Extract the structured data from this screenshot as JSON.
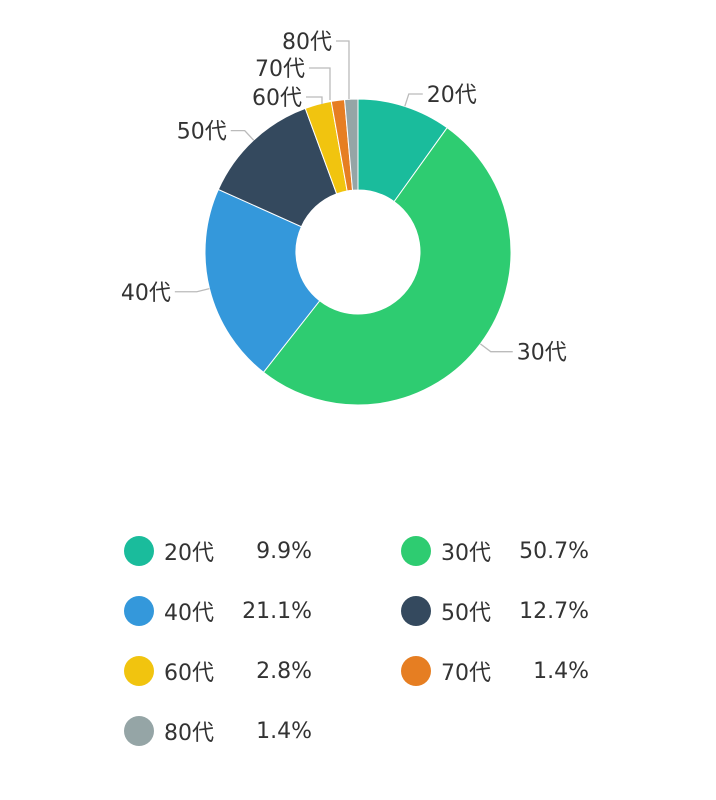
{
  "chart_data": {
    "type": "pie",
    "donut": true,
    "legend_position": "bottom",
    "slices": [
      {
        "label": "20代",
        "value": 9.9,
        "value_text": "9.9%",
        "color": "#1abc9c"
      },
      {
        "label": "30代",
        "value": 50.7,
        "value_text": "50.7%",
        "color": "#2ecc71"
      },
      {
        "label": "40代",
        "value": 21.1,
        "value_text": "21.1%",
        "color": "#3498db"
      },
      {
        "label": "50代",
        "value": 12.7,
        "value_text": "12.7%",
        "color": "#34495e"
      },
      {
        "label": "60代",
        "value": 2.8,
        "value_text": "2.8%",
        "color": "#f1c40f"
      },
      {
        "label": "70代",
        "value": 1.4,
        "value_text": "1.4%",
        "color": "#e67e22"
      },
      {
        "label": "80代",
        "value": 1.4,
        "value_text": "1.4%",
        "color": "#95a5a6"
      }
    ]
  }
}
